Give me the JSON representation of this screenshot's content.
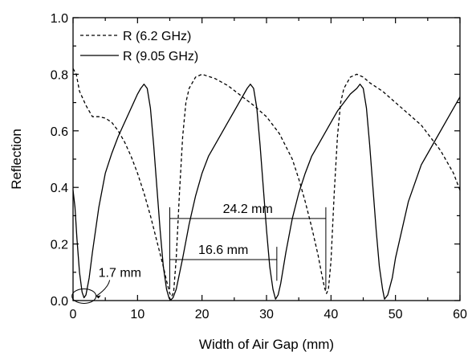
{
  "chart_data": {
    "type": "line",
    "xlabel": "Width of Air Gap (mm)",
    "ylabel": "Reflection",
    "xlim": [
      0,
      60
    ],
    "ylim": [
      0,
      1.0
    ],
    "xticks": [
      0,
      10,
      20,
      30,
      40,
      50,
      60
    ],
    "yticks": [
      0.0,
      0.2,
      0.4,
      0.6,
      0.8,
      1.0
    ],
    "xtick_labels": [
      "0",
      "10",
      "20",
      "30",
      "40",
      "50",
      "60"
    ],
    "ytick_labels": [
      "0.0",
      "0.2",
      "0.4",
      "0.6",
      "0.8",
      "1.0"
    ],
    "grid": false,
    "legend_position": "top-left",
    "series": [
      {
        "name": "R (6.2 GHz)",
        "style": "dashed",
        "color": "#000000",
        "x": [
          0,
          0.5,
          1,
          2,
          3,
          4,
          5,
          6,
          7,
          8,
          9,
          10,
          11,
          12,
          13,
          14,
          14.5,
          15,
          15.3,
          15.6,
          16,
          16.5,
          17,
          17.5,
          18,
          19,
          20,
          22,
          24,
          26,
          28,
          30,
          32,
          34,
          35,
          36,
          37,
          38,
          38.5,
          39,
          39.3,
          39.6,
          40,
          40.5,
          41,
          41.5,
          42,
          43,
          44,
          45,
          46,
          48,
          50,
          52,
          54,
          56,
          57,
          58,
          59,
          60
        ],
        "y": [
          0.82,
          0.8,
          0.74,
          0.69,
          0.65,
          0.65,
          0.645,
          0.63,
          0.6,
          0.56,
          0.51,
          0.45,
          0.38,
          0.3,
          0.21,
          0.12,
          0.07,
          0.025,
          0.015,
          0.03,
          0.15,
          0.38,
          0.58,
          0.7,
          0.75,
          0.79,
          0.8,
          0.785,
          0.76,
          0.725,
          0.69,
          0.65,
          0.59,
          0.5,
          0.43,
          0.35,
          0.26,
          0.16,
          0.1,
          0.045,
          0.025,
          0.04,
          0.14,
          0.38,
          0.58,
          0.7,
          0.75,
          0.79,
          0.8,
          0.79,
          0.77,
          0.74,
          0.7,
          0.66,
          0.62,
          0.56,
          0.53,
          0.49,
          0.45,
          0.39
        ]
      },
      {
        "name": "R (9.05 GHz)",
        "style": "solid",
        "color": "#000000",
        "x": [
          0,
          0.3,
          0.6,
          1,
          1.4,
          1.7,
          2,
          2.5,
          3,
          4,
          5,
          6,
          7,
          8,
          9,
          10,
          10.5,
          11,
          11.5,
          12,
          12.5,
          13,
          13.5,
          14,
          14.5,
          14.9,
          15.2,
          15.5,
          16,
          17,
          18,
          19,
          20,
          21,
          22,
          23,
          24,
          25,
          26,
          27,
          27.5,
          28,
          28.5,
          29,
          29.5,
          30,
          30.5,
          31,
          31.4,
          31.8,
          32.2,
          33,
          34,
          35,
          36,
          37,
          38,
          39,
          40,
          41,
          42,
          43,
          44,
          44.5,
          45,
          45.5,
          46,
          46.5,
          47,
          47.5,
          48,
          48.3,
          48.8,
          49.5,
          50,
          52,
          54,
          56,
          58,
          60
        ],
        "y": [
          0.39,
          0.33,
          0.22,
          0.1,
          0.03,
          0.01,
          0.02,
          0.08,
          0.17,
          0.33,
          0.45,
          0.52,
          0.58,
          0.63,
          0.68,
          0.73,
          0.75,
          0.765,
          0.75,
          0.68,
          0.55,
          0.4,
          0.25,
          0.12,
          0.04,
          0.008,
          0.003,
          0.01,
          0.04,
          0.15,
          0.27,
          0.37,
          0.45,
          0.51,
          0.55,
          0.59,
          0.63,
          0.67,
          0.71,
          0.75,
          0.765,
          0.75,
          0.68,
          0.55,
          0.4,
          0.25,
          0.12,
          0.04,
          0.005,
          0.02,
          0.06,
          0.17,
          0.29,
          0.38,
          0.45,
          0.51,
          0.55,
          0.59,
          0.63,
          0.67,
          0.7,
          0.73,
          0.75,
          0.765,
          0.75,
          0.68,
          0.55,
          0.4,
          0.25,
          0.12,
          0.04,
          0.005,
          0.02,
          0.08,
          0.15,
          0.35,
          0.48,
          0.56,
          0.64,
          0.72
        ]
      }
    ],
    "annotations": [
      {
        "text": "24.2 mm",
        "type": "span",
        "x_start": 15,
        "x_end": 39.2,
        "y": 0.29,
        "bar_top": 0.33,
        "bar_bottom": 0.04
      },
      {
        "text": "16.6 mm",
        "type": "span",
        "x_start": 15,
        "x_end": 31.6,
        "y": 0.145,
        "bar_top": 0.19,
        "bar_bottom": 0.07
      },
      {
        "text": "1.7 mm",
        "type": "callout",
        "target_x": 1.7,
        "target_y": 0.01
      }
    ]
  }
}
